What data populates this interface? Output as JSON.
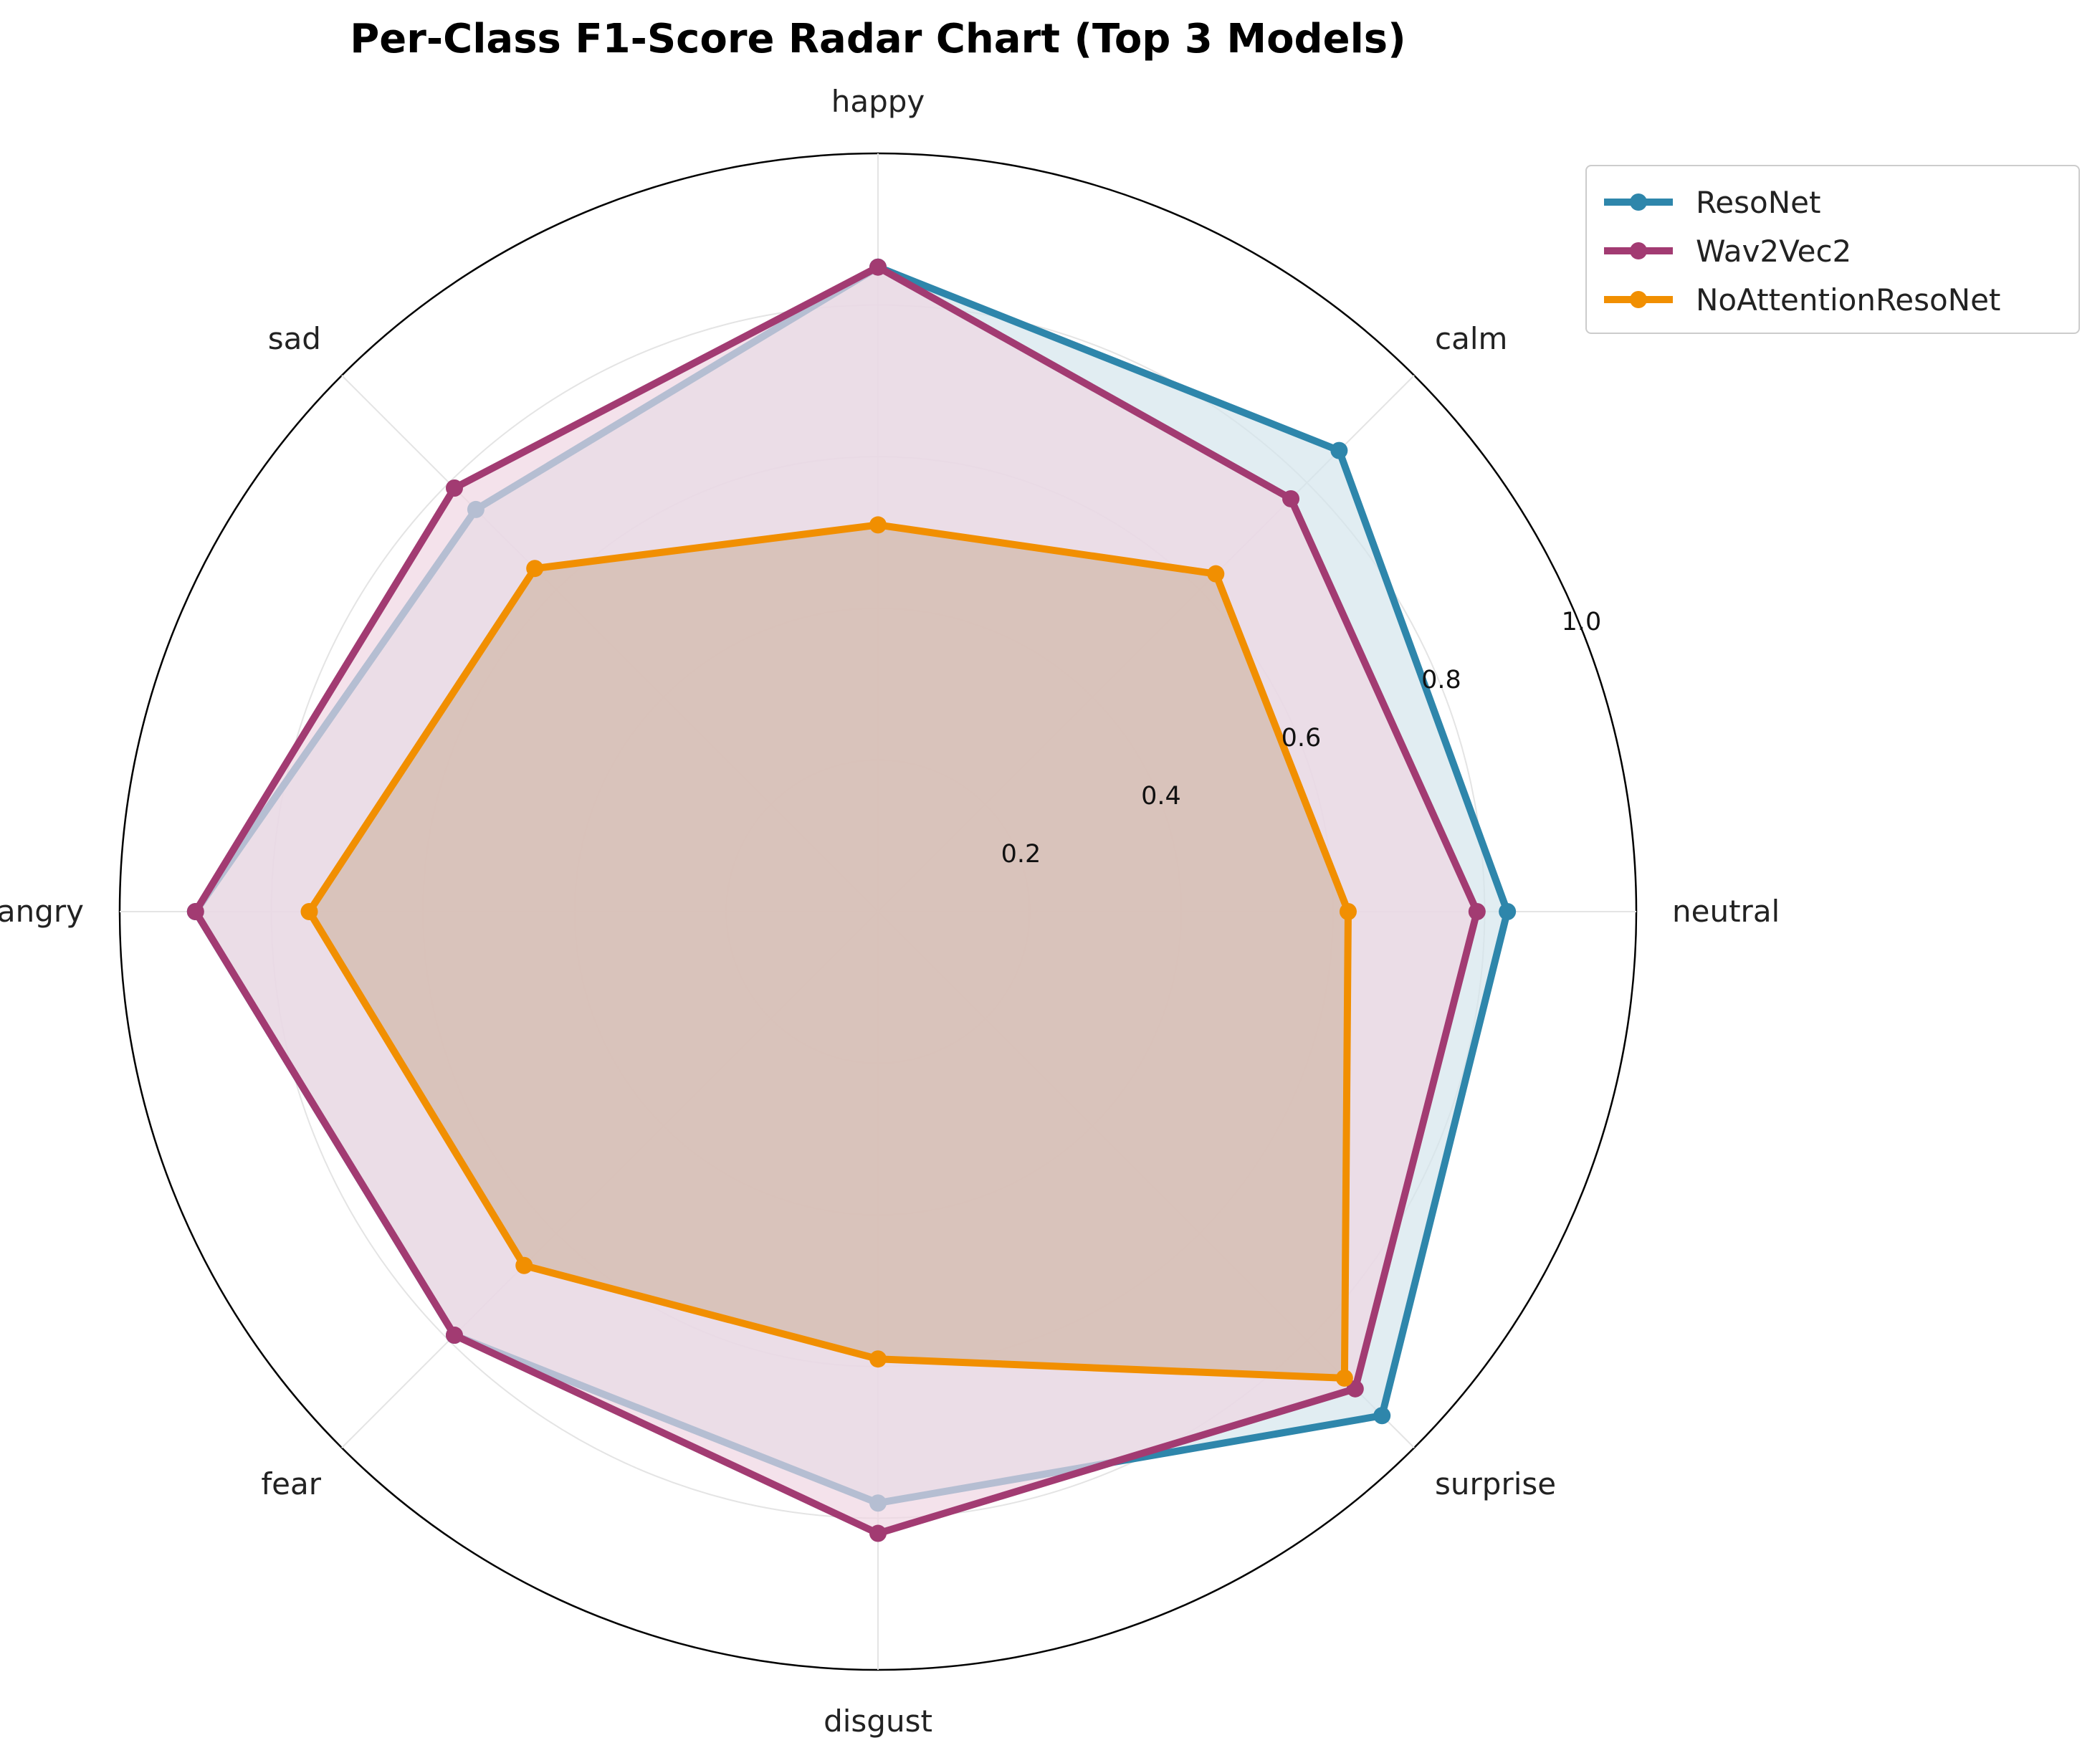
{
  "chart_data": {
    "type": "radar",
    "title": "Per-Class F1-Score Radar Chart (Top 3 Models)",
    "categories": [
      "neutral",
      "calm",
      "happy",
      "sad",
      "angry",
      "fear",
      "disgust",
      "surprise"
    ],
    "rlim": [
      0,
      1.0
    ],
    "rticks": [
      0.2,
      0.4,
      0.6,
      0.8,
      1.0
    ],
    "rtick_labels": [
      "0.2",
      "0.4",
      "0.6",
      "0.8",
      "1.0"
    ],
    "grid": true,
    "legend_position": "top-right outside",
    "series": [
      {
        "name": "ResoNet",
        "color": "#2e86ab",
        "fill": "#d4e6ec",
        "values": [
          0.83,
          0.86,
          0.85,
          0.75,
          0.9,
          0.79,
          0.78,
          0.94
        ]
      },
      {
        "name": "Wav2Vec2",
        "color": "#a23b72",
        "fill": "#f0d6e2",
        "values": [
          0.79,
          0.77,
          0.85,
          0.79,
          0.9,
          0.79,
          0.82,
          0.89
        ]
      },
      {
        "name": "NoAttentionResoNet",
        "color": "#f18f01",
        "fill": "#d2b8a8",
        "values": [
          0.62,
          0.63,
          0.51,
          0.64,
          0.75,
          0.66,
          0.59,
          0.87
        ]
      }
    ]
  }
}
